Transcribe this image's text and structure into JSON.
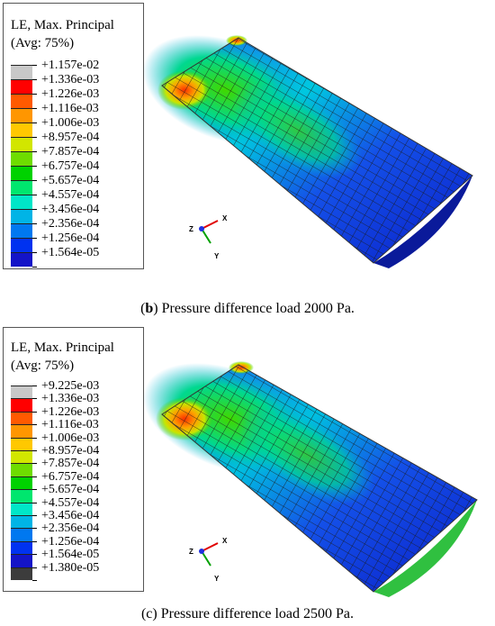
{
  "panel_b": {
    "legend_title_1": "LE, Max. Principal",
    "legend_title_2": "(Avg: 75%)",
    "labels": [
      "+1.157e-02",
      "+1.336e-03",
      "+1.226e-03",
      "+1.116e-03",
      "+1.006e-03",
      "+8.957e-04",
      "+7.857e-04",
      "+6.757e-04",
      "+5.657e-04",
      "+4.557e-04",
      "+3.456e-04",
      "+2.356e-04",
      "+1.256e-04",
      "+1.564e-05"
    ],
    "colors": [
      "#c8c8c8",
      "#ff0000",
      "#ff5a00",
      "#ff9600",
      "#ffc800",
      "#d2e600",
      "#6edc00",
      "#00d200",
      "#00e66e",
      "#00e6c8",
      "#00b4e6",
      "#0078f0",
      "#0032f0",
      "#1414c8"
    ],
    "caption_letter": "b",
    "caption_text": " Pressure difference load 2000 Pa.",
    "triad": {
      "z": "Z",
      "x": "X",
      "y": "Y"
    }
  },
  "panel_c": {
    "legend_title_1": "LE, Max. Principal",
    "legend_title_2": "(Avg: 75%)",
    "labels": [
      "+9.225e-03",
      "+1.336e-03",
      "+1.226e-03",
      "+1.116e-03",
      "+1.006e-03",
      "+8.957e-04",
      "+7.857e-04",
      "+6.757e-04",
      "+5.657e-04",
      "+4.557e-04",
      "+3.456e-04",
      "+2.356e-04",
      "+1.256e-04",
      "+1.564e-05",
      "+1.380e-05"
    ],
    "colors": [
      "#c8c8c8",
      "#ff0000",
      "#ff5a00",
      "#ff9600",
      "#ffc800",
      "#d2e600",
      "#6edc00",
      "#00d200",
      "#00e66e",
      "#00e6c8",
      "#00b4e6",
      "#0078f0",
      "#0032f0",
      "#1414c8",
      "#3c3c3c"
    ],
    "caption_letter": "c",
    "caption_text": " Pressure difference load 2500 Pa.",
    "triad": {
      "z": "Z",
      "x": "X",
      "y": "Y"
    }
  }
}
